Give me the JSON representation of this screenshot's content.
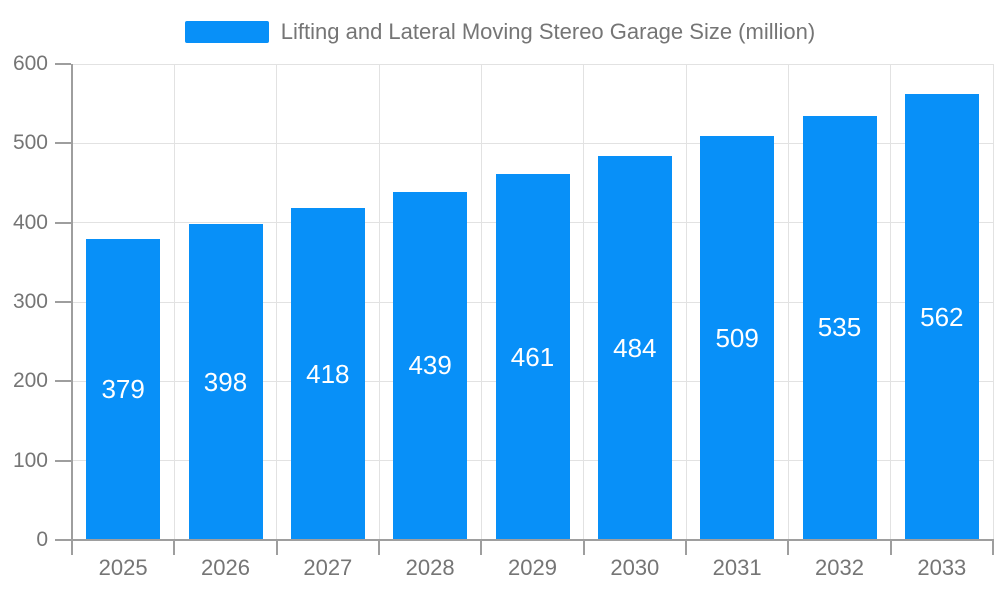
{
  "chart_data": {
    "type": "bar",
    "title": "Lifting and Lateral Moving Stereo Garage Size (million)",
    "categories": [
      "2025",
      "2026",
      "2027",
      "2028",
      "2029",
      "2030",
      "2031",
      "2032",
      "2033"
    ],
    "values": [
      379,
      398,
      418,
      439,
      461,
      484,
      509,
      535,
      562
    ],
    "series": [
      {
        "name": "Lifting and Lateral Moving Stereo Garage Size (million)",
        "values": [
          379,
          398,
          418,
          439,
          461,
          484,
          509,
          535,
          562
        ]
      }
    ],
    "xlabel": "",
    "ylabel": "",
    "ylim": [
      0,
      600
    ],
    "yticks": [
      0,
      100,
      200,
      300,
      400,
      500,
      600
    ],
    "grid": true,
    "legend_position": "top-center",
    "bar_label_position": "inside-center",
    "colors": {
      "bar": "#0890F8",
      "bar_label": "#FFFFFF",
      "axis": "#9E9E9E",
      "grid": "#E2E2E2",
      "tick_label": "#757575",
      "legend_text": "#757575",
      "background": "#FFFFFF"
    }
  }
}
